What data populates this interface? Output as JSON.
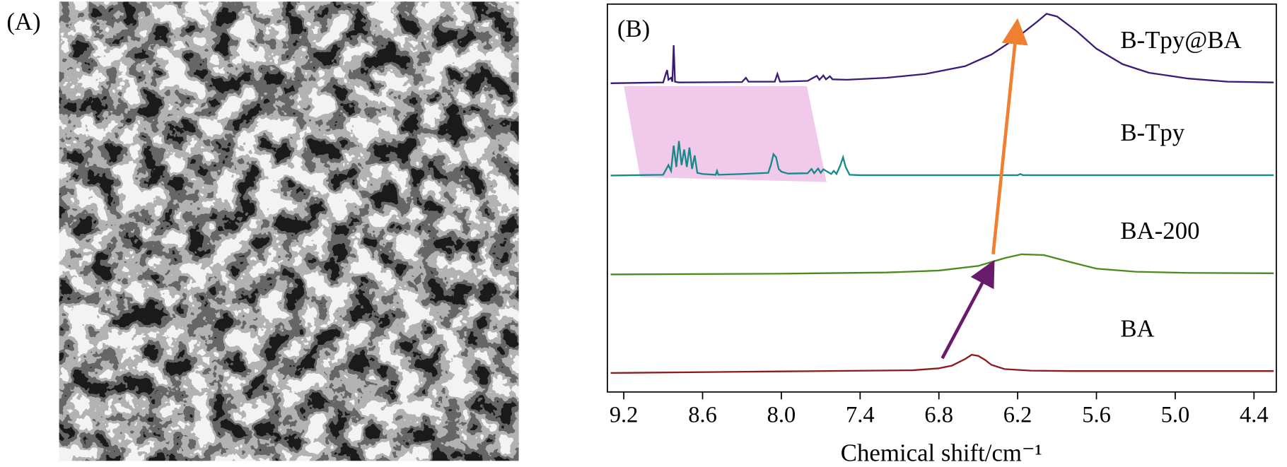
{
  "panel_a": {
    "label": "(A)"
  },
  "chart_data": {
    "type": "line",
    "panel_label": "(B)",
    "xlabel": "Chemical shift/cm⁻¹",
    "xlim": [
      9.325,
      4.23
    ],
    "ylim": [
      0,
      100
    ],
    "xticks": [
      9.2,
      8.6,
      {
        "value": 8,
        "label": "8.0"
      },
      7.4,
      6.8,
      6.2,
      5.6,
      {
        "value": 5,
        "label": "5.0"
      },
      4.4
    ],
    "series": [
      {
        "name": "B-Tpy@BA",
        "color": "#3b1b7a",
        "x": [
          9.3,
          8.9,
          8.88,
          8.87,
          8.86,
          8.84,
          8.83,
          8.82,
          8.81,
          8.78,
          8.3,
          8.27,
          8.25,
          8.05,
          8.03,
          8.01,
          7.8,
          7.73,
          7.71,
          7.68,
          7.66,
          7.63,
          7.61,
          7.5,
          7.2,
          6.9,
          6.6,
          6.4,
          6.2,
          6.05,
          5.98,
          5.9,
          5.75,
          5.6,
          5.4,
          5.2,
          4.9,
          4.6,
          4.25
        ],
        "values": [
          79.6,
          79.8,
          82.0,
          83.0,
          80.5,
          81.0,
          80.0,
          89.4,
          80.0,
          79.8,
          79.9,
          81.0,
          80.0,
          80.0,
          82.0,
          80.0,
          80.2,
          81.5,
          80.5,
          81.6,
          80.6,
          81.4,
          80.6,
          80.5,
          81.0,
          82.0,
          84.0,
          87.0,
          91.5,
          95.5,
          97.5,
          96.8,
          93.0,
          88.5,
          84.5,
          82.3,
          80.8,
          80.0,
          79.8
        ]
      },
      {
        "name": "B-Tpy",
        "color": "#148a8a",
        "x": [
          9.3,
          8.9,
          8.86,
          8.84,
          8.82,
          8.8,
          8.78,
          8.76,
          8.74,
          8.72,
          8.7,
          8.68,
          8.66,
          8.64,
          8.6,
          8.5,
          8.49,
          8.48,
          8.3,
          8.1,
          8.08,
          8.06,
          8.04,
          8.02,
          8.0,
          7.95,
          7.8,
          7.77,
          7.75,
          7.72,
          7.7,
          7.68,
          7.62,
          7.6,
          7.58,
          7.55,
          7.53,
          7.51,
          7.48,
          7.4,
          6.2,
          6.18,
          6.16,
          4.25
        ],
        "values": [
          55.8,
          56.0,
          58.5,
          57.0,
          63.5,
          58.0,
          64.7,
          58.5,
          62.5,
          58.0,
          63.0,
          57.5,
          61.0,
          56.5,
          56.2,
          56.0,
          57.0,
          56.0,
          56.2,
          56.5,
          58.5,
          61.3,
          60.5,
          57.5,
          56.8,
          56.3,
          56.4,
          57.5,
          56.4,
          57.6,
          56.5,
          57.4,
          56.2,
          57.0,
          56.2,
          58.5,
          60.5,
          58.0,
          56.0,
          55.9,
          55.9,
          56.2,
          55.9,
          55.9
        ]
      },
      {
        "name": "BA-200",
        "color": "#4b8a1c",
        "x": [
          9.3,
          8.0,
          7.2,
          6.8,
          6.5,
          6.3,
          6.17,
          6.0,
          5.8,
          5.6,
          5.3,
          4.9,
          4.25
        ],
        "values": [
          30.3,
          30.5,
          30.8,
          31.3,
          32.5,
          34.5,
          35.5,
          35.3,
          33.5,
          31.8,
          31.0,
          30.7,
          30.6
        ]
      },
      {
        "name": "BA",
        "color": "#8b1c1c",
        "x": [
          9.3,
          8.0,
          7.0,
          6.8,
          6.7,
          6.6,
          6.55,
          6.5,
          6.45,
          6.4,
          6.3,
          6.1,
          5.8,
          4.25
        ],
        "values": [
          4.9,
          5.3,
          5.6,
          6.1,
          6.8,
          8.5,
          9.6,
          9.3,
          8.3,
          7.0,
          5.9,
          5.5,
          5.4,
          5.4
        ]
      }
    ]
  }
}
